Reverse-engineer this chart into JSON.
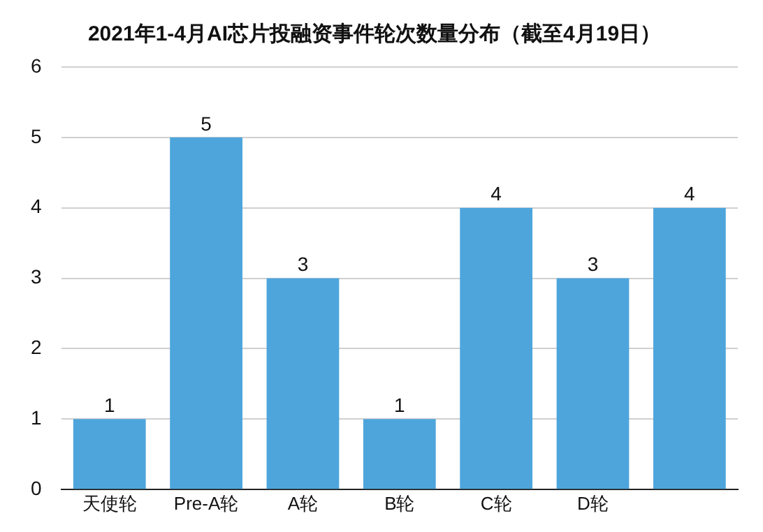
{
  "chart_data": {
    "type": "bar",
    "title": "2021年1-4月AI芯片投融资事件轮次数量分布（截至4月19日）",
    "categories": [
      "天使轮",
      "Pre-A轮",
      "A轮",
      "B轮",
      "C轮",
      "D轮",
      null
    ],
    "values": [
      1,
      5,
      3,
      1,
      4,
      3,
      4
    ],
    "color": "#4ea5dc",
    "ylim": [
      0,
      6
    ],
    "yticks": [
      0,
      1,
      2,
      3,
      4,
      5,
      6
    ],
    "grid": "y",
    "data_labels": true
  }
}
